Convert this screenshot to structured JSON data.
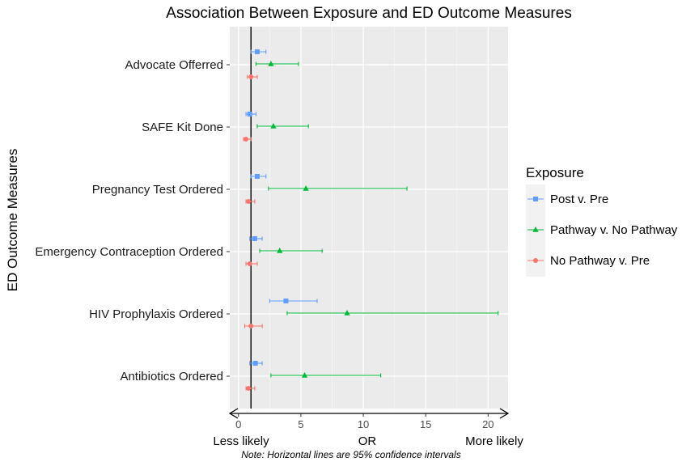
{
  "chart_data": {
    "type": "forest",
    "title": "Association Between Exposure and ED Outcome Measures",
    "ylabel": "ED Outcome Measures",
    "xlabel": "OR",
    "x_left_label": "Less likely",
    "x_right_label": "More likely",
    "note": "Note: Horizontal lines are 95% confidence intervals",
    "xlim": [
      -0.7,
      21.6
    ],
    "xticks": [
      0,
      5,
      10,
      15,
      20
    ],
    "reference_line": 1,
    "categories": [
      "Advocate Offerred",
      "SAFE Kit Done",
      "Pregnancy Test Ordered",
      "Emergency Contraception Ordered",
      "HIV Prophylaxis Ordered",
      "Antibiotics Ordered"
    ],
    "legend": {
      "title": "Exposure",
      "placement": "right"
    },
    "series": [
      {
        "name": "Post v. Pre",
        "color": "#619CFF",
        "marker": "square",
        "or": [
          1.5,
          0.9,
          1.5,
          1.3,
          3.8,
          1.35
        ],
        "lower": [
          1.0,
          0.6,
          1.0,
          0.9,
          2.5,
          0.9
        ],
        "upper": [
          2.2,
          1.4,
          2.2,
          1.9,
          6.3,
          1.9
        ]
      },
      {
        "name": "Pathway v. No Pathway",
        "color": "#00BA38",
        "marker": "triangle",
        "or": [
          2.6,
          2.8,
          5.4,
          3.3,
          8.7,
          5.3
        ],
        "lower": [
          1.4,
          1.5,
          2.4,
          1.7,
          3.9,
          2.6
        ],
        "upper": [
          4.8,
          5.6,
          13.5,
          6.7,
          20.8,
          11.4
        ]
      },
      {
        "name": "No Pathway v. Pre",
        "color": "#F8766D",
        "marker": "circle",
        "or": [
          1.0,
          0.6,
          0.8,
          0.9,
          1.0,
          0.8
        ],
        "lower": [
          0.7,
          0.4,
          0.6,
          0.6,
          0.5,
          0.6
        ],
        "upper": [
          1.5,
          1.0,
          1.3,
          1.5,
          1.9,
          1.3
        ]
      }
    ]
  }
}
